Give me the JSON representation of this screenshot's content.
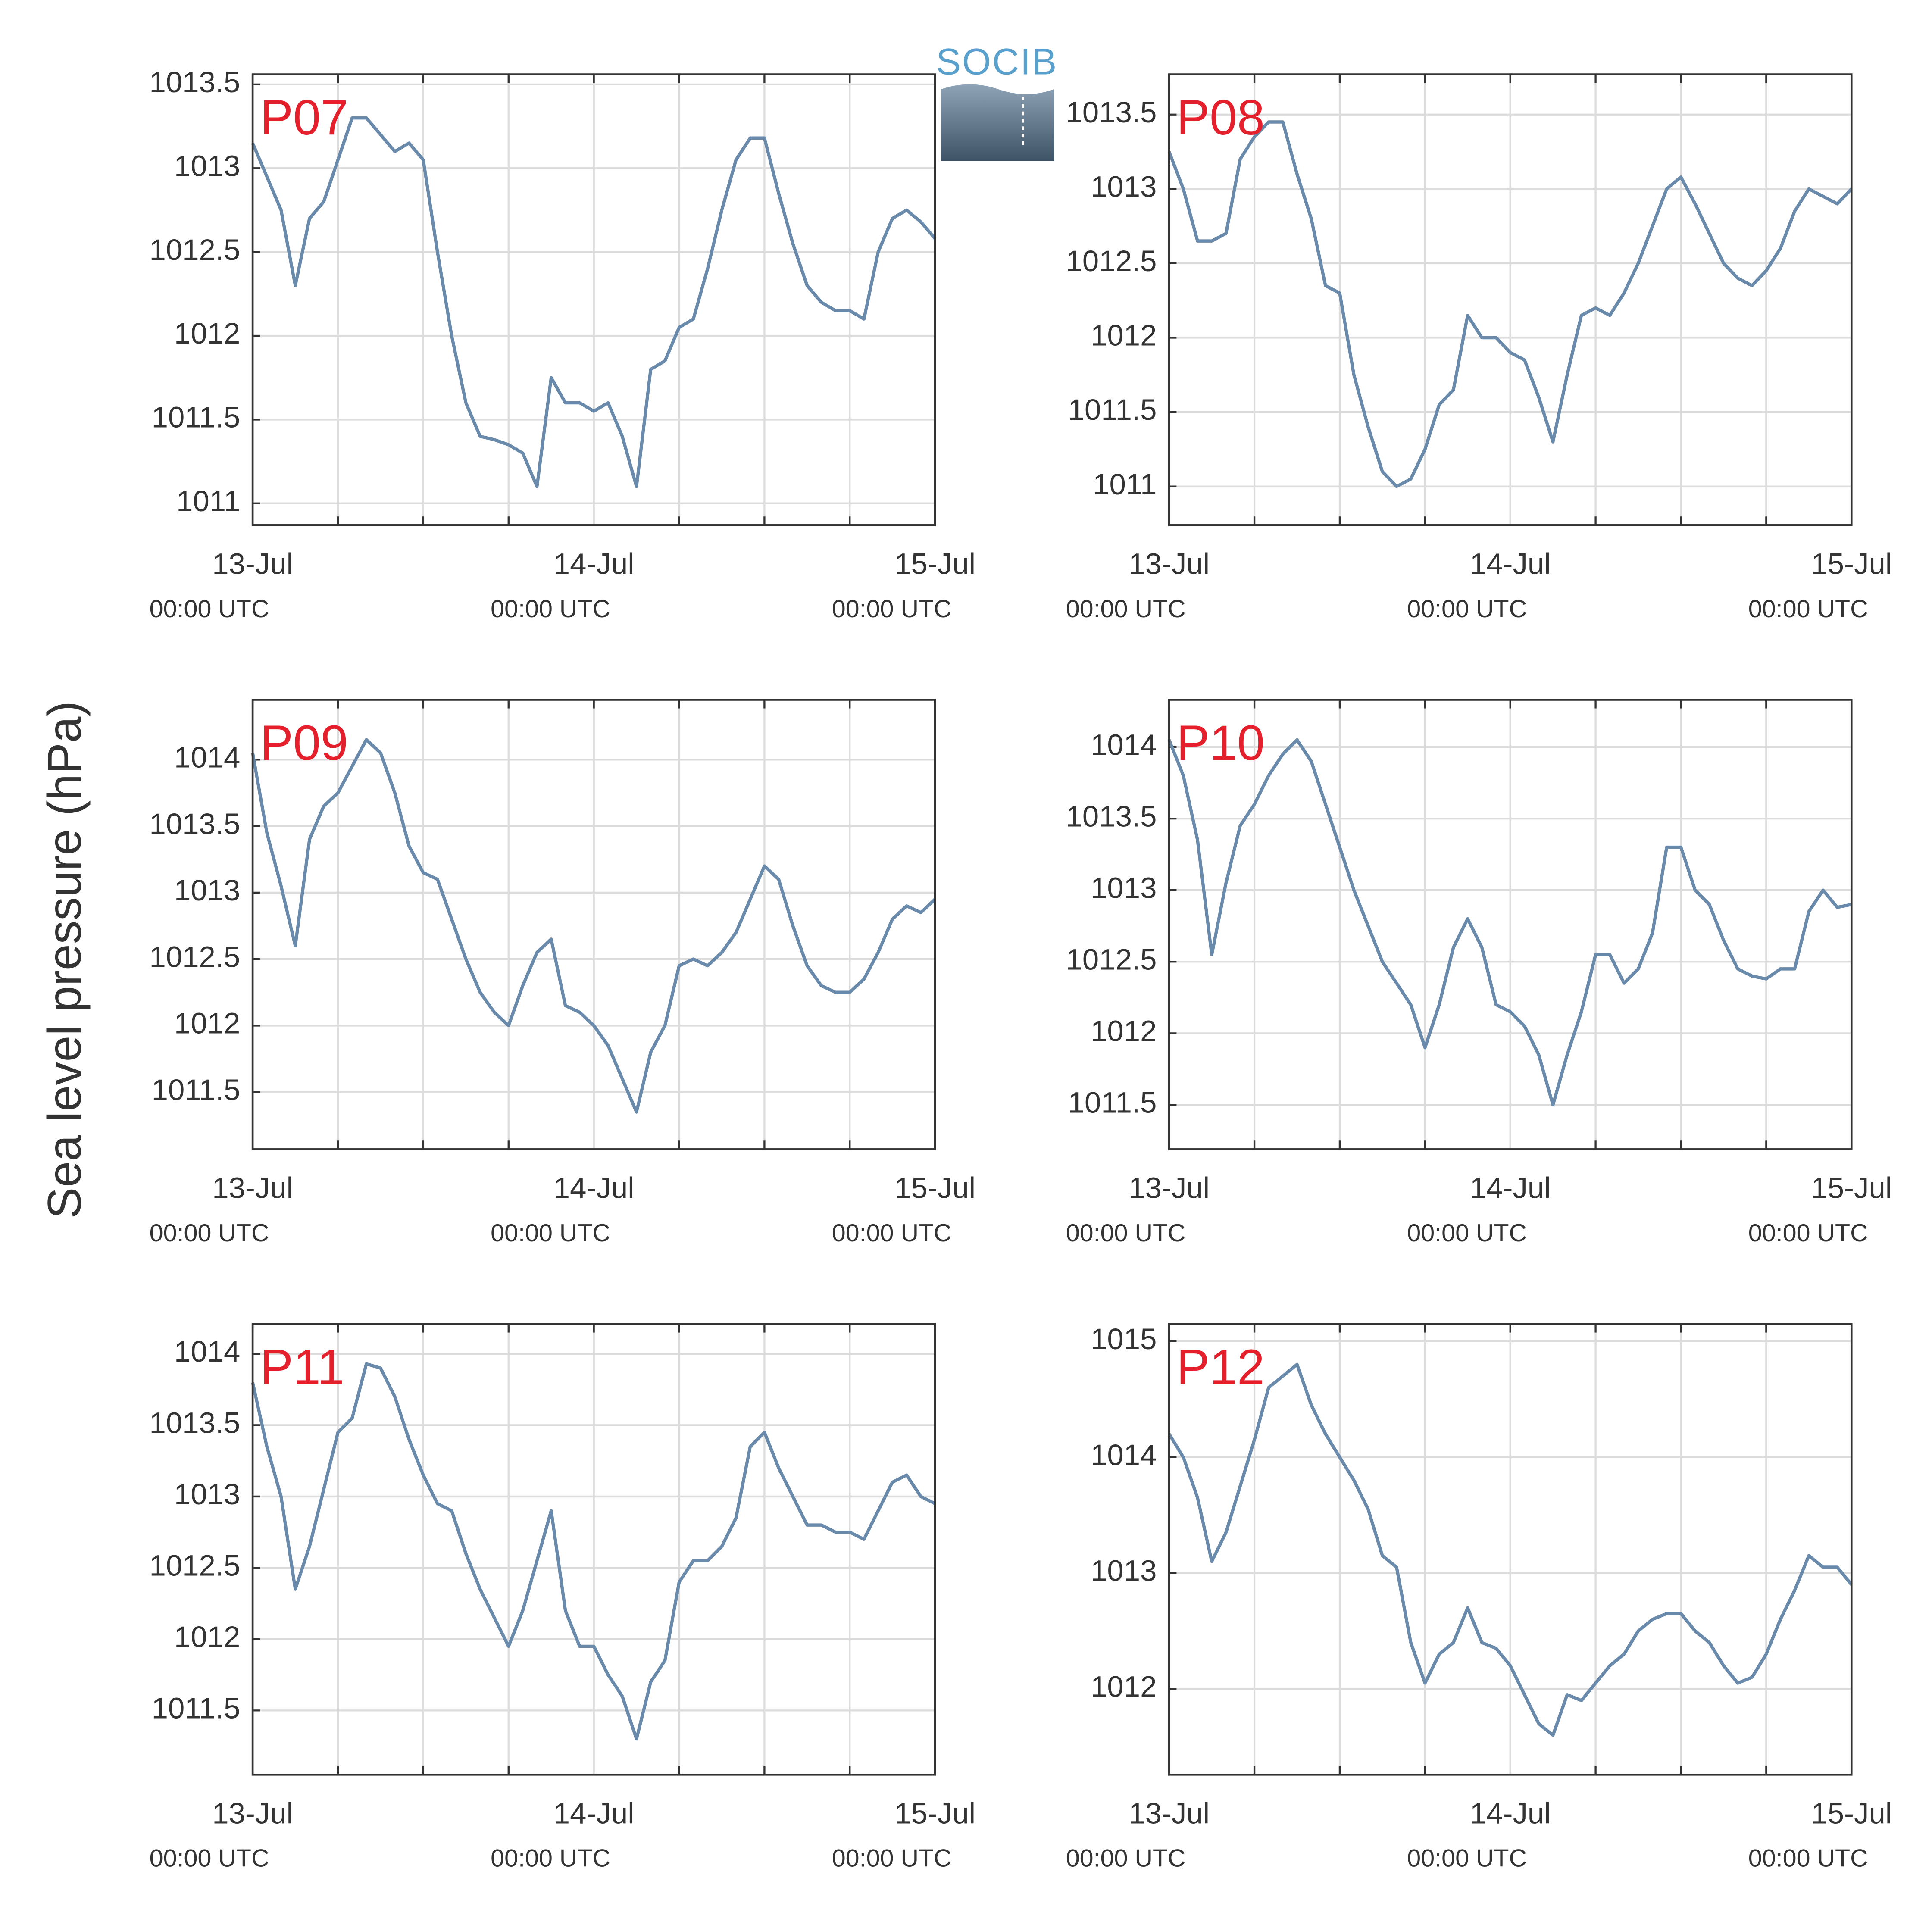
{
  "ylabel": "Sea level pressure (hPa)",
  "logo": "SOCIB",
  "chart_data": [
    {
      "type": "line",
      "label": "P07",
      "color": "#6a8aab",
      "grid": true,
      "x": [
        0,
        1,
        2,
        3,
        4,
        5,
        6,
        7,
        8,
        9,
        10,
        11,
        12,
        13,
        14,
        15,
        16,
        17,
        18,
        19,
        20,
        21,
        22,
        23,
        24,
        25,
        26,
        27,
        28,
        29,
        30,
        31,
        32,
        33,
        34,
        35,
        36,
        37,
        38,
        39,
        40,
        41,
        42,
        43,
        44,
        45,
        46,
        47,
        48
      ],
      "values": [
        1013.15,
        1012.95,
        1012.75,
        1012.3,
        1012.7,
        1012.8,
        1013.05,
        1013.3,
        1013.3,
        1013.2,
        1013.1,
        1013.15,
        1013.05,
        1012.5,
        1012.0,
        1011.6,
        1011.4,
        1011.38,
        1011.35,
        1011.3,
        1011.1,
        1011.75,
        1011.6,
        1011.6,
        1011.55,
        1011.6,
        1011.4,
        1011.1,
        1011.8,
        1011.85,
        1012.05,
        1012.1,
        1012.4,
        1012.75,
        1013.05,
        1013.18,
        1013.18,
        1012.85,
        1012.55,
        1012.3,
        1012.2,
        1012.15,
        1012.15,
        1012.1,
        1012.5,
        1012.7,
        1012.75,
        1012.68,
        1012.58
      ],
      "xlim": [
        0,
        48
      ],
      "xticks": [
        {
          "value": 0,
          "label": "13-Jul"
        },
        {
          "value": 24,
          "label": "14-Jul"
        },
        {
          "value": 48,
          "label": "15-Jul"
        }
      ],
      "xtick_sublabels": [
        "00:00 UTC",
        "00:00 UTC",
        "00:00 UTC"
      ],
      "xminorticks": [
        6,
        12,
        18,
        30,
        36,
        42
      ],
      "ylim": [
        1010.87,
        1013.56
      ],
      "yticks": [
        1011,
        1011.5,
        1012,
        1012.5,
        1013,
        1013.5
      ]
    },
    {
      "type": "line",
      "label": "P08",
      "color": "#6a8aab",
      "grid": true,
      "x": [
        0,
        1,
        2,
        3,
        4,
        5,
        6,
        7,
        8,
        9,
        10,
        11,
        12,
        13,
        14,
        15,
        16,
        17,
        18,
        19,
        20,
        21,
        22,
        23,
        24,
        25,
        26,
        27,
        28,
        29,
        30,
        31,
        32,
        33,
        34,
        35,
        36,
        37,
        38,
        39,
        40,
        41,
        42,
        43,
        44,
        45,
        46,
        47,
        48
      ],
      "values": [
        1013.25,
        1013.0,
        1012.65,
        1012.65,
        1012.7,
        1013.2,
        1013.35,
        1013.45,
        1013.45,
        1013.1,
        1012.8,
        1012.35,
        1012.3,
        1011.75,
        1011.4,
        1011.1,
        1011.0,
        1011.05,
        1011.25,
        1011.55,
        1011.65,
        1012.15,
        1012.0,
        1012.0,
        1011.9,
        1011.85,
        1011.6,
        1011.3,
        1011.75,
        1012.15,
        1012.2,
        1012.15,
        1012.3,
        1012.5,
        1012.75,
        1013.0,
        1013.08,
        1012.9,
        1012.7,
        1012.5,
        1012.4,
        1012.35,
        1012.45,
        1012.6,
        1012.85,
        1013.0,
        1012.95,
        1012.9,
        1013.0
      ],
      "xlim": [
        0,
        48
      ],
      "xticks": [
        {
          "value": 0,
          "label": "13-Jul"
        },
        {
          "value": 24,
          "label": "14-Jul"
        },
        {
          "value": 48,
          "label": "15-Jul"
        }
      ],
      "xtick_sublabels": [
        "00:00 UTC",
        "00:00 UTC",
        "00:00 UTC"
      ],
      "xminorticks": [
        6,
        12,
        18,
        30,
        36,
        42
      ],
      "ylim": [
        1010.74,
        1013.77
      ],
      "yticks": [
        1011,
        1011.5,
        1012,
        1012.5,
        1013,
        1013.5
      ]
    },
    {
      "type": "line",
      "label": "P09",
      "color": "#6a8aab",
      "grid": true,
      "x": [
        0,
        1,
        2,
        3,
        4,
        5,
        6,
        7,
        8,
        9,
        10,
        11,
        12,
        13,
        14,
        15,
        16,
        17,
        18,
        19,
        20,
        21,
        22,
        23,
        24,
        25,
        26,
        27,
        28,
        29,
        30,
        31,
        32,
        33,
        34,
        35,
        36,
        37,
        38,
        39,
        40,
        41,
        42,
        43,
        44,
        45,
        46,
        47,
        48
      ],
      "values": [
        1014.05,
        1013.45,
        1013.05,
        1012.6,
        1013.4,
        1013.65,
        1013.75,
        1013.95,
        1014.15,
        1014.05,
        1013.75,
        1013.35,
        1013.15,
        1013.1,
        1012.8,
        1012.5,
        1012.25,
        1012.1,
        1012.0,
        1012.3,
        1012.55,
        1012.65,
        1012.15,
        1012.1,
        1012.0,
        1011.85,
        1011.6,
        1011.35,
        1011.8,
        1012.0,
        1012.45,
        1012.5,
        1012.45,
        1012.55,
        1012.7,
        1012.95,
        1013.2,
        1013.1,
        1012.75,
        1012.45,
        1012.3,
        1012.25,
        1012.25,
        1012.35,
        1012.55,
        1012.8,
        1012.9,
        1012.85,
        1012.95
      ],
      "xlim": [
        0,
        48
      ],
      "xticks": [
        {
          "value": 0,
          "label": "13-Jul"
        },
        {
          "value": 24,
          "label": "14-Jul"
        },
        {
          "value": 48,
          "label": "15-Jul"
        }
      ],
      "xtick_sublabels": [
        "00:00 UTC",
        "00:00 UTC",
        "00:00 UTC"
      ],
      "xminorticks": [
        6,
        12,
        18,
        30,
        36,
        42
      ],
      "ylim": [
        1011.07,
        1014.45
      ],
      "yticks": [
        1011.5,
        1012,
        1012.5,
        1013,
        1013.5,
        1014
      ]
    },
    {
      "type": "line",
      "label": "P10",
      "color": "#6a8aab",
      "grid": true,
      "x": [
        0,
        1,
        2,
        3,
        4,
        5,
        6,
        7,
        8,
        9,
        10,
        11,
        12,
        13,
        14,
        15,
        16,
        17,
        18,
        19,
        20,
        21,
        22,
        23,
        24,
        25,
        26,
        27,
        28,
        29,
        30,
        31,
        32,
        33,
        34,
        35,
        36,
        37,
        38,
        39,
        40,
        41,
        42,
        43,
        44,
        45,
        46,
        47,
        48
      ],
      "values": [
        1014.05,
        1013.8,
        1013.35,
        1012.55,
        1013.05,
        1013.45,
        1013.6,
        1013.8,
        1013.95,
        1014.05,
        1013.9,
        1013.6,
        1013.3,
        1013.0,
        1012.75,
        1012.5,
        1012.35,
        1012.2,
        1011.9,
        1012.2,
        1012.6,
        1012.8,
        1012.6,
        1012.2,
        1012.15,
        1012.05,
        1011.85,
        1011.5,
        1011.85,
        1012.15,
        1012.55,
        1012.55,
        1012.35,
        1012.45,
        1012.7,
        1013.3,
        1013.3,
        1013.0,
        1012.9,
        1012.65,
        1012.45,
        1012.4,
        1012.38,
        1012.45,
        1012.45,
        1012.85,
        1013.0,
        1012.88,
        1012.9
      ],
      "xlim": [
        0,
        48
      ],
      "xticks": [
        {
          "value": 0,
          "label": "13-Jul"
        },
        {
          "value": 24,
          "label": "14-Jul"
        },
        {
          "value": 48,
          "label": "15-Jul"
        }
      ],
      "xtick_sublabels": [
        "00:00 UTC",
        "00:00 UTC",
        "00:00 UTC"
      ],
      "xminorticks": [
        6,
        12,
        18,
        30,
        36,
        42
      ],
      "ylim": [
        1011.19,
        1014.33
      ],
      "yticks": [
        1011.5,
        1012,
        1012.5,
        1013,
        1013.5,
        1014
      ]
    },
    {
      "type": "line",
      "label": "P11",
      "color": "#6a8aab",
      "grid": true,
      "x": [
        0,
        1,
        2,
        3,
        4,
        5,
        6,
        7,
        8,
        9,
        10,
        11,
        12,
        13,
        14,
        15,
        16,
        17,
        18,
        19,
        20,
        21,
        22,
        23,
        24,
        25,
        26,
        27,
        28,
        29,
        30,
        31,
        32,
        33,
        34,
        35,
        36,
        37,
        38,
        39,
        40,
        41,
        42,
        43,
        44,
        45,
        46,
        47,
        48
      ],
      "values": [
        1013.8,
        1013.35,
        1013.0,
        1012.35,
        1012.65,
        1013.05,
        1013.45,
        1013.55,
        1013.93,
        1013.9,
        1013.7,
        1013.4,
        1013.15,
        1012.95,
        1012.9,
        1012.6,
        1012.35,
        1012.15,
        1011.95,
        1012.2,
        1012.55,
        1012.9,
        1012.2,
        1011.95,
        1011.95,
        1011.75,
        1011.6,
        1011.3,
        1011.7,
        1011.85,
        1012.4,
        1012.55,
        1012.55,
        1012.65,
        1012.85,
        1013.35,
        1013.45,
        1013.2,
        1013.0,
        1012.8,
        1012.8,
        1012.75,
        1012.75,
        1012.7,
        1012.9,
        1013.1,
        1013.15,
        1013.0,
        1012.95
      ],
      "xlim": [
        0,
        48
      ],
      "xticks": [
        {
          "value": 0,
          "label": "13-Jul"
        },
        {
          "value": 24,
          "label": "14-Jul"
        },
        {
          "value": 48,
          "label": "15-Jul"
        }
      ],
      "xtick_sublabels": [
        "00:00 UTC",
        "00:00 UTC",
        "00:00 UTC"
      ],
      "xminorticks": [
        6,
        12,
        18,
        30,
        36,
        42
      ],
      "ylim": [
        1011.05,
        1014.21
      ],
      "yticks": [
        1011.5,
        1012,
        1012.5,
        1013,
        1013.5,
        1014
      ]
    },
    {
      "type": "line",
      "label": "P12",
      "color": "#6a8aab",
      "grid": true,
      "x": [
        0,
        1,
        2,
        3,
        4,
        5,
        6,
        7,
        8,
        9,
        10,
        11,
        12,
        13,
        14,
        15,
        16,
        17,
        18,
        19,
        20,
        21,
        22,
        23,
        24,
        25,
        26,
        27,
        28,
        29,
        30,
        31,
        32,
        33,
        34,
        35,
        36,
        37,
        38,
        39,
        40,
        41,
        42,
        43,
        44,
        45,
        46,
        47,
        48
      ],
      "values": [
        1014.2,
        1014.0,
        1013.65,
        1013.1,
        1013.35,
        1013.75,
        1014.15,
        1014.6,
        1014.7,
        1014.8,
        1014.45,
        1014.2,
        1014.0,
        1013.8,
        1013.55,
        1013.15,
        1013.05,
        1012.4,
        1012.05,
        1012.3,
        1012.4,
        1012.7,
        1012.4,
        1012.35,
        1012.2,
        1011.95,
        1011.7,
        1011.6,
        1011.95,
        1011.9,
        1012.05,
        1012.2,
        1012.3,
        1012.5,
        1012.6,
        1012.65,
        1012.65,
        1012.5,
        1012.4,
        1012.2,
        1012.05,
        1012.1,
        1012.3,
        1012.6,
        1012.85,
        1013.15,
        1013.05,
        1013.05,
        1012.9
      ],
      "xlim": [
        0,
        48
      ],
      "xticks": [
        {
          "value": 0,
          "label": "13-Jul"
        },
        {
          "value": 24,
          "label": "14-Jul"
        },
        {
          "value": 48,
          "label": "15-Jul"
        }
      ],
      "xtick_sublabels": [
        "00:00 UTC",
        "00:00 UTC",
        "00:00 UTC"
      ],
      "xminorticks": [
        6,
        12,
        18,
        30,
        36,
        42
      ],
      "ylim": [
        1011.26,
        1015.15
      ],
      "yticks": [
        1012,
        1013,
        1014,
        1015
      ]
    }
  ]
}
